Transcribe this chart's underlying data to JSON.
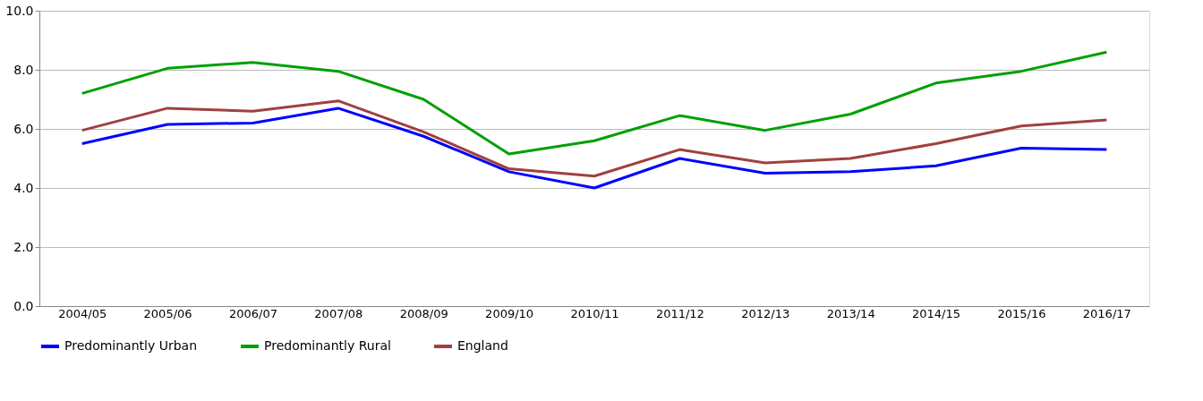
{
  "chart_data": {
    "type": "line",
    "categories": [
      "2004/05",
      "2005/06",
      "2006/07",
      "2007/08",
      "2008/09",
      "2009/10",
      "2010/11",
      "2011/12",
      "2012/13",
      "2013/14",
      "2014/15",
      "2015/16",
      "2016/17"
    ],
    "series": [
      {
        "name": "Predominantly Urban",
        "color": "#0000ff",
        "values": [
          5.5,
          6.15,
          6.2,
          6.7,
          5.75,
          4.55,
          4.0,
          5.0,
          4.5,
          4.55,
          4.75,
          5.35,
          5.3
        ]
      },
      {
        "name": "Predominantly Rural",
        "color": "#00a000",
        "values": [
          7.2,
          8.05,
          8.25,
          7.95,
          7.0,
          5.15,
          5.6,
          6.45,
          5.95,
          6.5,
          7.55,
          7.95,
          8.6
        ]
      },
      {
        "name": "England",
        "color": "#a0403f",
        "values": [
          5.95,
          6.7,
          6.6,
          6.95,
          5.9,
          4.65,
          4.4,
          5.3,
          4.85,
          5.0,
          5.5,
          6.1,
          6.3
        ]
      }
    ],
    "ylim": [
      0,
      10
    ],
    "yticks": [
      {
        "value": 0,
        "label": "0.0"
      },
      {
        "value": 2,
        "label": "2.0"
      },
      {
        "value": 4,
        "label": "4.0"
      },
      {
        "value": 6,
        "label": "6.0"
      },
      {
        "value": 8,
        "label": "8.0"
      },
      {
        "value": 10,
        "label": "10.0"
      }
    ],
    "grid": "y",
    "legend": "bottom",
    "marker": "none",
    "line_style": "solid"
  }
}
